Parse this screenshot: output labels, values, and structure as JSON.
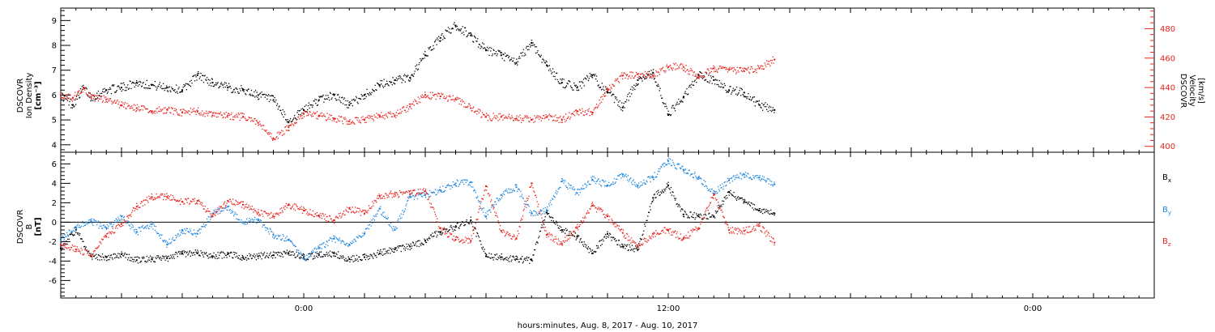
{
  "colors": {
    "black": "#000000",
    "red": "#e8231e",
    "blue": "#1f86e0"
  },
  "xlabel": "hours:minutes, Aug.  8, 2017 - Aug. 10, 2017",
  "chart_data": [
    {
      "id": "density-velocity",
      "type": "scatter",
      "x_unit": "hours since start of plot",
      "xlim": [
        0,
        72
      ],
      "xticks": [
        {
          "x": 16,
          "label": "0:00"
        },
        {
          "x": 40,
          "label": "12:00"
        },
        {
          "x": 64,
          "label": "0:00"
        }
      ],
      "left_axis": {
        "title": "DSCOVR",
        "label": "Ion Density",
        "unit": "[cm⁻³]",
        "ylim": [
          3.7,
          9.5
        ],
        "ticks": [
          4,
          5,
          6,
          7,
          8,
          9
        ],
        "color": "#000000"
      },
      "right_axis": {
        "title": "DSCOVR",
        "label": "Velocity",
        "unit": "[km/s]",
        "ylim": [
          396,
          494
        ],
        "ticks": [
          400,
          420,
          440,
          460,
          480
        ],
        "color": "#e8231e"
      },
      "series": [
        {
          "name": "Ion Density",
          "axis": "left",
          "color": "#000000",
          "points": [
            [
              0,
              6.0
            ],
            [
              0.8,
              5.6
            ],
            [
              1.5,
              6.3
            ],
            [
              2,
              5.9
            ],
            [
              3,
              6.2
            ],
            [
              4,
              6.3
            ],
            [
              5,
              6.5
            ],
            [
              6,
              6.4
            ],
            [
              7,
              6.3
            ],
            [
              8,
              6.2
            ],
            [
              9,
              6.8
            ],
            [
              10,
              6.5
            ],
            [
              11,
              6.3
            ],
            [
              12,
              6.2
            ],
            [
              13,
              6.0
            ],
            [
              14,
              5.8
            ],
            [
              15,
              4.9
            ],
            [
              16,
              5.4
            ],
            [
              17,
              5.8
            ],
            [
              18,
              6.0
            ],
            [
              19,
              5.6
            ],
            [
              20,
              6.0
            ],
            [
              21,
              6.4
            ],
            [
              22,
              6.6
            ],
            [
              23,
              6.7
            ],
            [
              24,
              7.6
            ],
            [
              25,
              8.3
            ],
            [
              26,
              8.8
            ],
            [
              27,
              8.4
            ],
            [
              28,
              7.8
            ],
            [
              29,
              7.6
            ],
            [
              30,
              7.3
            ],
            [
              31,
              8.1
            ],
            [
              32,
              7.2
            ],
            [
              33,
              6.5
            ],
            [
              34,
              6.3
            ],
            [
              35,
              6.8
            ],
            [
              36,
              6.1
            ],
            [
              37,
              5.5
            ],
            [
              38,
              6.6
            ],
            [
              39,
              6.9
            ],
            [
              40,
              5.2
            ],
            [
              41,
              5.9
            ],
            [
              42,
              6.8
            ],
            [
              43,
              6.6
            ],
            [
              44,
              6.2
            ],
            [
              45,
              6.1
            ],
            [
              46,
              5.6
            ],
            [
              47,
              5.4
            ]
          ]
        },
        {
          "name": "Velocity",
          "axis": "right",
          "color": "#e8231e",
          "points": [
            [
              0,
              435
            ],
            [
              0.8,
              433
            ],
            [
              1.5,
              440
            ],
            [
              2,
              433
            ],
            [
              3,
              432
            ],
            [
              4,
              428
            ],
            [
              5,
              426
            ],
            [
              6,
              424
            ],
            [
              7,
              425
            ],
            [
              8,
              423
            ],
            [
              9,
              424
            ],
            [
              10,
              421
            ],
            [
              11,
              421
            ],
            [
              12,
              420
            ],
            [
              13,
              416
            ],
            [
              14,
              405
            ],
            [
              15,
              413
            ],
            [
              16,
              422
            ],
            [
              17,
              421
            ],
            [
              18,
              419
            ],
            [
              19,
              417
            ],
            [
              20,
              418
            ],
            [
              21,
              421
            ],
            [
              22,
              421
            ],
            [
              23,
              427
            ],
            [
              24,
              435
            ],
            [
              25,
              434
            ],
            [
              26,
              432
            ],
            [
              27,
              426
            ],
            [
              28,
              420
            ],
            [
              29,
              420
            ],
            [
              30,
              419
            ],
            [
              31,
              418
            ],
            [
              32,
              420
            ],
            [
              33,
              418
            ],
            [
              34,
              424
            ],
            [
              35,
              423
            ],
            [
              36,
              439
            ],
            [
              37,
              448
            ],
            [
              38,
              449
            ],
            [
              39,
              448
            ],
            [
              40,
              454
            ],
            [
              41,
              454
            ],
            [
              42,
              447
            ],
            [
              43,
              453
            ],
            [
              44,
              452
            ],
            [
              45,
              451
            ],
            [
              46,
              453
            ],
            [
              47,
              459
            ]
          ]
        }
      ]
    },
    {
      "id": "magnetic-field",
      "type": "scatter",
      "x_unit": "hours since start of plot",
      "xlim": [
        0,
        72
      ],
      "xticks": [
        {
          "x": 16,
          "label": "0:00"
        },
        {
          "x": 40,
          "label": "12:00"
        },
        {
          "x": 64,
          "label": "0:00"
        }
      ],
      "axis": {
        "title": "DSCOVR",
        "label": "B",
        "unit": "[nT]",
        "ylim": [
          -7.8,
          7.2
        ],
        "ticks": [
          -6,
          -4,
          -2,
          0,
          2,
          4,
          6
        ],
        "color": "#000000"
      },
      "zero_line": true,
      "series": [
        {
          "name": "B",
          "subscript": "x",
          "color": "#000000",
          "points": [
            [
              0,
              -2.7
            ],
            [
              1,
              -0.8
            ],
            [
              2,
              -3.5
            ],
            [
              3,
              -3.6
            ],
            [
              4,
              -3.3
            ],
            [
              5,
              -3.9
            ],
            [
              6,
              -3.8
            ],
            [
              7,
              -3.7
            ],
            [
              8,
              -3.2
            ],
            [
              9,
              -3.2
            ],
            [
              10,
              -3.5
            ],
            [
              11,
              -3.3
            ],
            [
              12,
              -3.6
            ],
            [
              13,
              -3.5
            ],
            [
              14,
              -3.4
            ],
            [
              15,
              -3.2
            ],
            [
              16,
              -3.6
            ],
            [
              17,
              -3.4
            ],
            [
              18,
              -3.2
            ],
            [
              19,
              -3.8
            ],
            [
              20,
              -3.6
            ],
            [
              21,
              -3.2
            ],
            [
              22,
              -2.8
            ],
            [
              23,
              -2.5
            ],
            [
              24,
              -1.9
            ],
            [
              25,
              -1.0
            ],
            [
              26,
              -0.5
            ],
            [
              27,
              0.2
            ],
            [
              28,
              -3.5
            ],
            [
              29,
              -3.6
            ],
            [
              30,
              -3.8
            ],
            [
              31,
              -3.9
            ],
            [
              32,
              1.0
            ],
            [
              33,
              -0.8
            ],
            [
              34,
              -1.5
            ],
            [
              35,
              -3.2
            ],
            [
              36,
              -1.2
            ],
            [
              37,
              -2.5
            ],
            [
              38,
              -2.8
            ],
            [
              39,
              2.5
            ],
            [
              40,
              3.8
            ],
            [
              41,
              0.8
            ],
            [
              42,
              0.6
            ],
            [
              43,
              0.6
            ],
            [
              44,
              3.1
            ],
            [
              45,
              2.1
            ],
            [
              46,
              1.2
            ],
            [
              47,
              0.9
            ]
          ]
        },
        {
          "name": "B",
          "subscript": "y",
          "color": "#1f86e0",
          "points": [
            [
              0,
              -1.8
            ],
            [
              1,
              -0.5
            ],
            [
              2,
              0.1
            ],
            [
              3,
              -0.6
            ],
            [
              4,
              0.6
            ],
            [
              5,
              -1.0
            ],
            [
              6,
              -0.2
            ],
            [
              7,
              -2.3
            ],
            [
              8,
              -0.8
            ],
            [
              9,
              -1.2
            ],
            [
              10,
              0.9
            ],
            [
              11,
              1.6
            ],
            [
              12,
              0.0
            ],
            [
              13,
              0.2
            ],
            [
              14,
              -1.3
            ],
            [
              15,
              -1.8
            ],
            [
              16,
              -3.8
            ],
            [
              17,
              -2.6
            ],
            [
              18,
              -1.7
            ],
            [
              19,
              -2.3
            ],
            [
              20,
              -1.2
            ],
            [
              21,
              1.4
            ],
            [
              22,
              -0.8
            ],
            [
              23,
              2.6
            ],
            [
              24,
              2.8
            ],
            [
              25,
              3.3
            ],
            [
              26,
              4.0
            ],
            [
              27,
              4.1
            ],
            [
              28,
              0.6
            ],
            [
              29,
              2.8
            ],
            [
              30,
              3.6
            ],
            [
              31,
              0.9
            ],
            [
              32,
              1.2
            ],
            [
              33,
              4.2
            ],
            [
              34,
              3.0
            ],
            [
              35,
              4.4
            ],
            [
              36,
              3.8
            ],
            [
              37,
              4.9
            ],
            [
              38,
              3.8
            ],
            [
              39,
              4.6
            ],
            [
              40,
              6.3
            ],
            [
              41,
              5.4
            ],
            [
              42,
              4.6
            ],
            [
              43,
              2.9
            ],
            [
              44,
              4.3
            ],
            [
              45,
              4.9
            ],
            [
              46,
              4.6
            ],
            [
              47,
              3.9
            ]
          ]
        },
        {
          "name": "B",
          "subscript": "z",
          "color": "#e8231e",
          "points": [
            [
              0,
              -2.3
            ],
            [
              1,
              -2.8
            ],
            [
              2,
              -3.4
            ],
            [
              3,
              -1.5
            ],
            [
              4,
              -0.2
            ],
            [
              5,
              1.6
            ],
            [
              6,
              2.6
            ],
            [
              7,
              2.6
            ],
            [
              8,
              2.1
            ],
            [
              9,
              2.2
            ],
            [
              10,
              0.6
            ],
            [
              11,
              2.2
            ],
            [
              12,
              1.8
            ],
            [
              13,
              1.0
            ],
            [
              14,
              0.6
            ],
            [
              15,
              1.8
            ],
            [
              16,
              1.2
            ],
            [
              17,
              0.7
            ],
            [
              18,
              0.2
            ],
            [
              19,
              1.4
            ],
            [
              20,
              0.9
            ],
            [
              21,
              2.7
            ],
            [
              22,
              2.9
            ],
            [
              23,
              2.9
            ],
            [
              24,
              3.2
            ],
            [
              25,
              -0.6
            ],
            [
              26,
              -1.8
            ],
            [
              27,
              -1.9
            ],
            [
              28,
              3.7
            ],
            [
              29,
              -0.9
            ],
            [
              30,
              -1.7
            ],
            [
              31,
              4.0
            ],
            [
              32,
              -1.3
            ],
            [
              33,
              -2.2
            ],
            [
              34,
              -0.6
            ],
            [
              35,
              1.7
            ],
            [
              36,
              0.6
            ],
            [
              37,
              -1.1
            ],
            [
              38,
              -2.5
            ],
            [
              39,
              -1.2
            ],
            [
              40,
              -0.8
            ],
            [
              41,
              -1.7
            ],
            [
              42,
              -0.6
            ],
            [
              43,
              2.8
            ],
            [
              44,
              -0.8
            ],
            [
              45,
              -0.9
            ],
            [
              46,
              -0.4
            ],
            [
              47,
              -2.1
            ]
          ]
        }
      ]
    }
  ]
}
